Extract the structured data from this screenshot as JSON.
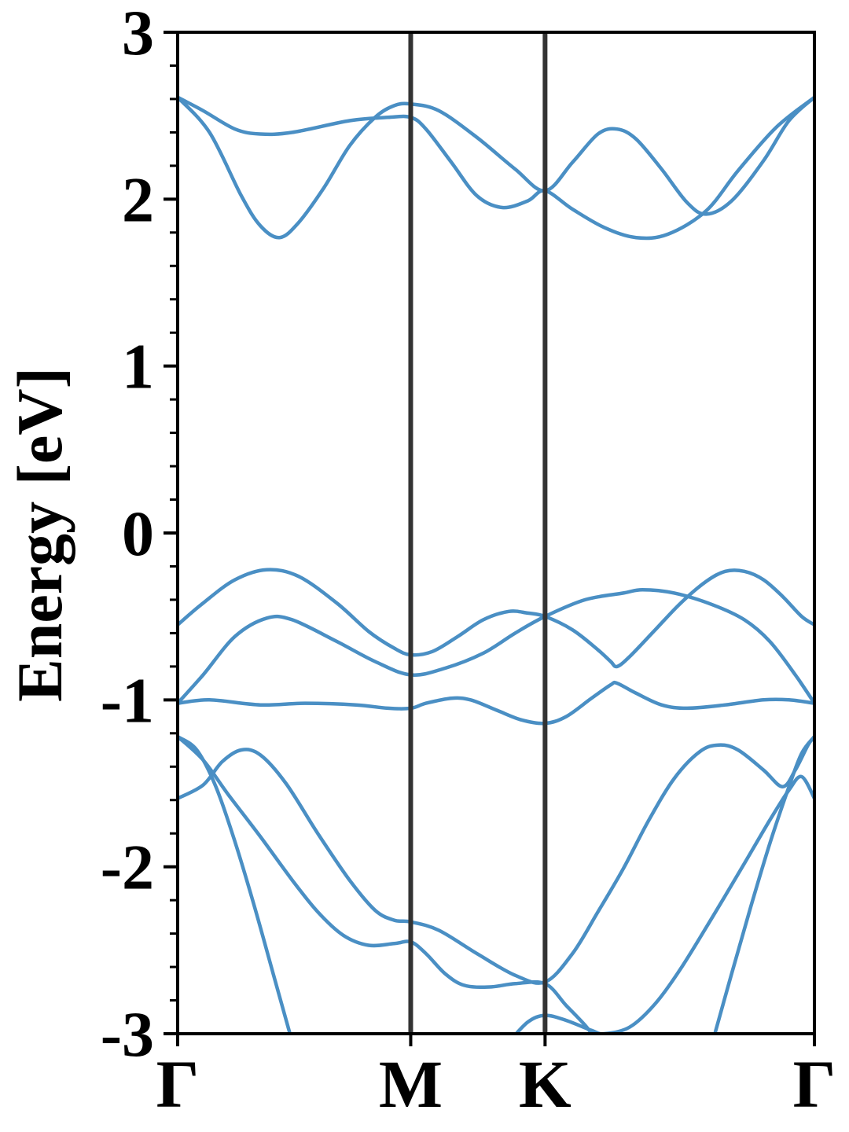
{
  "chart_data": {
    "type": "line",
    "title": "",
    "xlabel": "",
    "ylabel": "Energy [eV]",
    "ylim": [
      -3,
      3
    ],
    "xlim": [
      0,
      1
    ],
    "grid": false,
    "legend": "none",
    "line_color": "#4a8fc4",
    "separator_color": "#333333",
    "yticks": [
      "3",
      "2",
      "1",
      "0",
      "-1",
      "-2",
      "-3"
    ],
    "ytick_values": [
      3,
      2,
      1,
      0,
      -1,
      -2,
      -3
    ],
    "y_minor_step": 0.2,
    "kpoints": [
      {
        "label": "Γ",
        "x": 0.0
      },
      {
        "label": "M",
        "x": 0.366
      },
      {
        "label": "K",
        "x": 0.577
      },
      {
        "label": "Γ",
        "x": 1.0
      }
    ],
    "bands": [
      {
        "points": [
          [
            0,
            2.61
          ],
          [
            0.04,
            2.53
          ],
          [
            0.09,
            2.42
          ],
          [
            0.13,
            2.39
          ],
          [
            0.18,
            2.4
          ],
          [
            0.27,
            2.47
          ],
          [
            0.33,
            2.49
          ],
          [
            0.366,
            2.49
          ],
          [
            0.39,
            2.42
          ],
          [
            0.43,
            2.22
          ],
          [
            0.47,
            2.02
          ],
          [
            0.51,
            1.95
          ],
          [
            0.55,
            1.99
          ],
          [
            0.577,
            2.05
          ],
          [
            0.62,
            1.94
          ],
          [
            0.67,
            1.83
          ],
          [
            0.72,
            1.77
          ],
          [
            0.77,
            1.79
          ],
          [
            0.83,
            1.93
          ],
          [
            0.88,
            2.17
          ],
          [
            0.94,
            2.43
          ],
          [
            1.0,
            2.61
          ]
        ]
      },
      {
        "points": [
          [
            0,
            2.61
          ],
          [
            0.05,
            2.4
          ],
          [
            0.1,
            2.02
          ],
          [
            0.13,
            1.84
          ],
          [
            0.16,
            1.77
          ],
          [
            0.19,
            1.86
          ],
          [
            0.23,
            2.07
          ],
          [
            0.27,
            2.32
          ],
          [
            0.31,
            2.49
          ],
          [
            0.34,
            2.56
          ],
          [
            0.366,
            2.57
          ],
          [
            0.41,
            2.53
          ],
          [
            0.47,
            2.37
          ],
          [
            0.53,
            2.18
          ],
          [
            0.577,
            2.05
          ],
          [
            0.62,
            2.22
          ],
          [
            0.66,
            2.39
          ],
          [
            0.69,
            2.42
          ],
          [
            0.72,
            2.36
          ],
          [
            0.76,
            2.18
          ],
          [
            0.8,
            1.98
          ],
          [
            0.83,
            1.91
          ],
          [
            0.87,
            1.99
          ],
          [
            0.92,
            2.23
          ],
          [
            0.96,
            2.47
          ],
          [
            1.0,
            2.61
          ]
        ]
      },
      {
        "points": [
          [
            0,
            -0.55
          ],
          [
            0.04,
            -0.42
          ],
          [
            0.09,
            -0.28
          ],
          [
            0.14,
            -0.22
          ],
          [
            0.19,
            -0.26
          ],
          [
            0.25,
            -0.42
          ],
          [
            0.3,
            -0.59
          ],
          [
            0.34,
            -0.69
          ],
          [
            0.366,
            -0.73
          ],
          [
            0.4,
            -0.71
          ],
          [
            0.44,
            -0.62
          ],
          [
            0.48,
            -0.52
          ],
          [
            0.52,
            -0.47
          ],
          [
            0.55,
            -0.48
          ],
          [
            0.577,
            -0.5
          ],
          [
            0.62,
            -0.58
          ],
          [
            0.66,
            -0.7
          ],
          [
            0.68,
            -0.77
          ],
          [
            0.69,
            -0.8
          ],
          [
            0.71,
            -0.74
          ],
          [
            0.75,
            -0.58
          ],
          [
            0.79,
            -0.42
          ],
          [
            0.83,
            -0.29
          ],
          [
            0.86,
            -0.23
          ],
          [
            0.89,
            -0.23
          ],
          [
            0.92,
            -0.28
          ],
          [
            0.95,
            -0.38
          ],
          [
            0.98,
            -0.5
          ],
          [
            1.0,
            -0.55
          ]
        ]
      },
      {
        "points": [
          [
            0,
            -1.02
          ],
          [
            0.04,
            -0.85
          ],
          [
            0.09,
            -0.62
          ],
          [
            0.14,
            -0.51
          ],
          [
            0.18,
            -0.52
          ],
          [
            0.25,
            -0.65
          ],
          [
            0.31,
            -0.77
          ],
          [
            0.366,
            -0.85
          ],
          [
            0.42,
            -0.81
          ],
          [
            0.48,
            -0.72
          ],
          [
            0.53,
            -0.6
          ],
          [
            0.577,
            -0.5
          ],
          [
            0.64,
            -0.4
          ],
          [
            0.7,
            -0.36
          ],
          [
            0.73,
            -0.34
          ],
          [
            0.78,
            -0.36
          ],
          [
            0.84,
            -0.43
          ],
          [
            0.89,
            -0.52
          ],
          [
            0.93,
            -0.65
          ],
          [
            0.97,
            -0.85
          ],
          [
            1.0,
            -1.02
          ]
        ]
      },
      {
        "points": [
          [
            0,
            -1.02
          ],
          [
            0.05,
            -1.0
          ],
          [
            0.13,
            -1.03
          ],
          [
            0.2,
            -1.02
          ],
          [
            0.28,
            -1.03
          ],
          [
            0.33,
            -1.05
          ],
          [
            0.366,
            -1.05
          ],
          [
            0.39,
            -1.02
          ],
          [
            0.43,
            -0.99
          ],
          [
            0.46,
            -1.0
          ],
          [
            0.5,
            -1.06
          ],
          [
            0.54,
            -1.12
          ],
          [
            0.577,
            -1.14
          ],
          [
            0.61,
            -1.1
          ],
          [
            0.65,
            -0.99
          ],
          [
            0.68,
            -0.91
          ],
          [
            0.69,
            -0.9
          ],
          [
            0.72,
            -0.96
          ],
          [
            0.76,
            -1.03
          ],
          [
            0.8,
            -1.05
          ],
          [
            0.86,
            -1.03
          ],
          [
            0.92,
            -1.0
          ],
          [
            0.96,
            -1.0
          ],
          [
            1.0,
            -1.02
          ]
        ]
      },
      {
        "points": [
          [
            0,
            -1.22
          ],
          [
            0.04,
            -1.36
          ],
          [
            0.08,
            -1.57
          ],
          [
            0.13,
            -1.82
          ],
          [
            0.18,
            -2.08
          ],
          [
            0.22,
            -2.27
          ],
          [
            0.26,
            -2.41
          ],
          [
            0.3,
            -2.47
          ],
          [
            0.34,
            -2.46
          ],
          [
            0.366,
            -2.45
          ],
          [
            0.39,
            -2.52
          ],
          [
            0.42,
            -2.64
          ],
          [
            0.45,
            -2.71
          ],
          [
            0.49,
            -2.72
          ],
          [
            0.53,
            -2.7
          ],
          [
            0.577,
            -2.7
          ],
          [
            0.61,
            -2.83
          ],
          [
            0.64,
            -2.95
          ],
          [
            0.66,
            -3.05
          ]
        ]
      },
      {
        "points": [
          [
            0,
            -1.22
          ],
          [
            0.03,
            -1.3
          ],
          [
            0.06,
            -1.52
          ],
          [
            0.09,
            -1.85
          ],
          [
            0.12,
            -2.23
          ],
          [
            0.15,
            -2.64
          ],
          [
            0.18,
            -3.05
          ]
        ]
      },
      {
        "points": [
          [
            0,
            -1.59
          ],
          [
            0.04,
            -1.51
          ],
          [
            0.07,
            -1.37
          ],
          [
            0.1,
            -1.3
          ],
          [
            0.13,
            -1.33
          ],
          [
            0.17,
            -1.5
          ],
          [
            0.22,
            -1.8
          ],
          [
            0.27,
            -2.08
          ],
          [
            0.31,
            -2.26
          ],
          [
            0.34,
            -2.32
          ],
          [
            0.366,
            -2.33
          ],
          [
            0.41,
            -2.38
          ],
          [
            0.47,
            -2.52
          ],
          [
            0.53,
            -2.65
          ],
          [
            0.577,
            -2.69
          ],
          [
            0.62,
            -2.52
          ],
          [
            0.66,
            -2.27
          ],
          [
            0.7,
            -2.01
          ],
          [
            0.74,
            -1.72
          ],
          [
            0.78,
            -1.47
          ],
          [
            0.82,
            -1.31
          ],
          [
            0.85,
            -1.27
          ],
          [
            0.88,
            -1.3
          ],
          [
            0.92,
            -1.42
          ],
          [
            0.95,
            -1.52
          ],
          [
            0.97,
            -1.42
          ],
          [
            0.99,
            -1.27
          ],
          [
            1.0,
            -1.22
          ]
        ]
      },
      {
        "points": [
          [
            0.52,
            -3.05
          ],
          [
            0.55,
            -2.93
          ],
          [
            0.577,
            -2.89
          ],
          [
            0.61,
            -2.92
          ],
          [
            0.65,
            -2.98
          ],
          [
            0.67,
            -3.0
          ],
          [
            0.71,
            -2.96
          ],
          [
            0.75,
            -2.82
          ],
          [
            0.79,
            -2.61
          ],
          [
            0.84,
            -2.3
          ],
          [
            0.89,
            -1.98
          ],
          [
            0.93,
            -1.72
          ],
          [
            0.96,
            -1.54
          ],
          [
            0.98,
            -1.46
          ],
          [
            1.0,
            -1.59
          ]
        ]
      },
      {
        "points": [
          [
            0.84,
            -3.05
          ],
          [
            0.87,
            -2.64
          ],
          [
            0.9,
            -2.24
          ],
          [
            0.93,
            -1.86
          ],
          [
            0.96,
            -1.52
          ],
          [
            0.98,
            -1.32
          ],
          [
            1.0,
            -1.22
          ]
        ]
      }
    ]
  }
}
